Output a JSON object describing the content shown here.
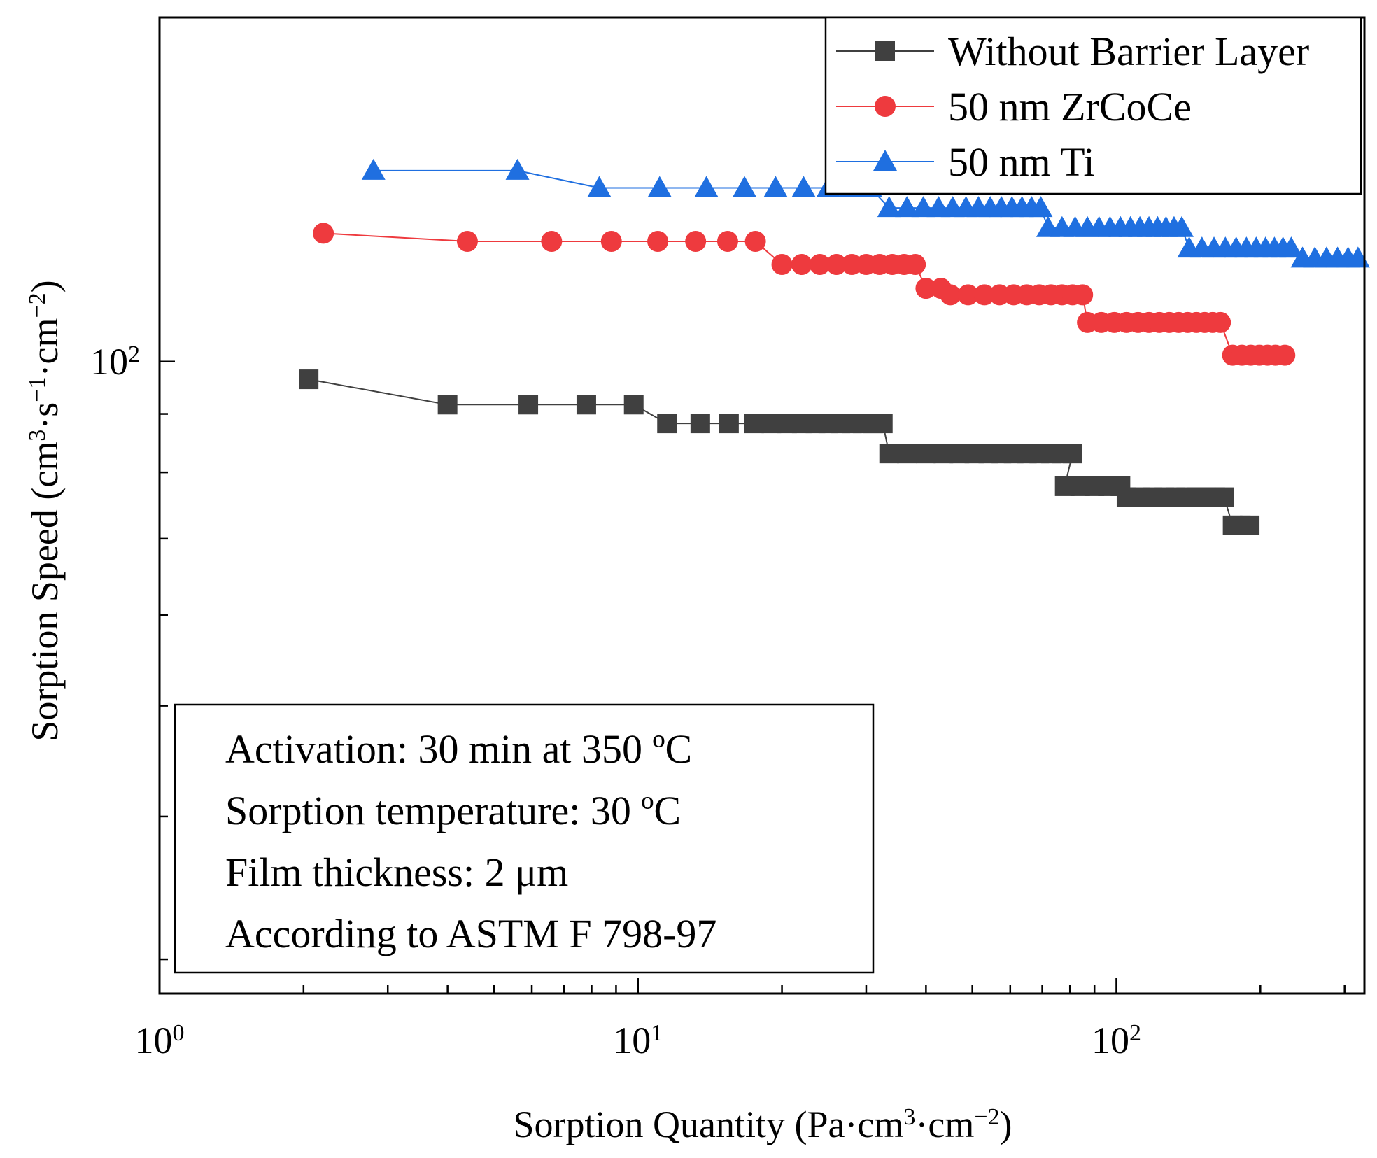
{
  "chart_data": {
    "type": "scatter",
    "title": "",
    "xlabel_parts": [
      "Sorption Quantity (Pa·cm",
      "3",
      "·cm",
      "−2",
      ")"
    ],
    "ylabel_parts": [
      "Sorption Speed (cm",
      "3",
      "·s",
      "−1",
      "·cm",
      "−2",
      ")"
    ],
    "x_scale": "log",
    "y_scale": "log",
    "xlim": [
      1,
      330
    ],
    "ylim": [
      28,
      200
    ],
    "x_ticks": [
      {
        "value": 1,
        "base": "10",
        "exp": "0"
      },
      {
        "value": 10,
        "base": "10",
        "exp": "1"
      },
      {
        "value": 100,
        "base": "10",
        "exp": "2"
      }
    ],
    "y_ticks": [
      {
        "value": 100,
        "base": "10",
        "exp": "2"
      }
    ],
    "series": [
      {
        "name": "Without Barrier Layer",
        "color": "#404040",
        "marker": "square",
        "points": [
          [
            2.05,
            96.5
          ],
          [
            4.0,
            91.7
          ],
          [
            5.9,
            91.7
          ],
          [
            7.8,
            91.7
          ],
          [
            9.8,
            91.7
          ],
          [
            11.5,
            88.3
          ],
          [
            13.5,
            88.3
          ],
          [
            15.5,
            88.3
          ],
          [
            17.5,
            88.3
          ],
          [
            19.0,
            88.3
          ],
          [
            20.5,
            88.3
          ],
          [
            22.0,
            88.3
          ],
          [
            23.5,
            88.3
          ],
          [
            25.0,
            88.3
          ],
          [
            26.5,
            88.3
          ],
          [
            28.0,
            88.3
          ],
          [
            29.5,
            88.3
          ],
          [
            31.0,
            88.3
          ],
          [
            32.5,
            88.3
          ],
          [
            33.5,
            83.1
          ],
          [
            36.5,
            83.1
          ],
          [
            40.0,
            83.1
          ],
          [
            43.5,
            83.1
          ],
          [
            47.0,
            83.1
          ],
          [
            50.5,
            83.1
          ],
          [
            54.0,
            83.1
          ],
          [
            57.5,
            83.1
          ],
          [
            61.0,
            83.1
          ],
          [
            65.0,
            83.1
          ],
          [
            69.0,
            83.1
          ],
          [
            73.0,
            83.1
          ],
          [
            77.0,
            83.1
          ],
          [
            81.0,
            83.1
          ],
          [
            78.0,
            77.8
          ],
          [
            84.0,
            77.8
          ],
          [
            90.0,
            77.8
          ],
          [
            96.0,
            77.8
          ],
          [
            102.0,
            77.8
          ],
          [
            105.0,
            76.1
          ],
          [
            112.0,
            76.1
          ],
          [
            119.0,
            76.1
          ],
          [
            126.0,
            76.1
          ],
          [
            133.0,
            76.1
          ],
          [
            140.0,
            76.1
          ],
          [
            147.0,
            76.1
          ],
          [
            154.0,
            76.1
          ],
          [
            161.0,
            76.1
          ],
          [
            168.0,
            76.1
          ],
          [
            175.0,
            71.9
          ],
          [
            182.0,
            71.9
          ],
          [
            190.0,
            71.9
          ]
        ]
      },
      {
        "name": "50 nm ZrCoCe",
        "color": "#ee3a3e",
        "marker": "circle",
        "points": [
          [
            2.2,
            129.5
          ],
          [
            4.4,
            127.4
          ],
          [
            6.6,
            127.4
          ],
          [
            8.8,
            127.4
          ],
          [
            11.0,
            127.4
          ],
          [
            13.2,
            127.4
          ],
          [
            15.4,
            127.4
          ],
          [
            17.6,
            127.4
          ],
          [
            20.0,
            121.6
          ],
          [
            22.0,
            121.6
          ],
          [
            24.0,
            121.6
          ],
          [
            26.0,
            121.6
          ],
          [
            28.0,
            121.6
          ],
          [
            30.0,
            121.6
          ],
          [
            32.0,
            121.6
          ],
          [
            34.0,
            121.6
          ],
          [
            36.0,
            121.6
          ],
          [
            38.0,
            121.6
          ],
          [
            40.0,
            115.9
          ],
          [
            43.0,
            115.9
          ],
          [
            45.0,
            114.4
          ],
          [
            49.0,
            114.4
          ],
          [
            53.0,
            114.4
          ],
          [
            57.0,
            114.4
          ],
          [
            61.0,
            114.4
          ],
          [
            65.0,
            114.4
          ],
          [
            69.0,
            114.4
          ],
          [
            73.0,
            114.4
          ],
          [
            77.0,
            114.4
          ],
          [
            81.0,
            114.4
          ],
          [
            85.0,
            114.4
          ],
          [
            87.0,
            108.2
          ],
          [
            93.0,
            108.2
          ],
          [
            99.0,
            108.2
          ],
          [
            105.0,
            108.2
          ],
          [
            111.0,
            108.2
          ],
          [
            117.0,
            108.2
          ],
          [
            123.0,
            108.2
          ],
          [
            129.0,
            108.2
          ],
          [
            135.0,
            108.2
          ],
          [
            141.0,
            108.2
          ],
          [
            147.0,
            108.2
          ],
          [
            153.0,
            108.2
          ],
          [
            159.0,
            108.2
          ],
          [
            165.0,
            108.2
          ],
          [
            175.0,
            101.3
          ],
          [
            183.0,
            101.3
          ],
          [
            191.0,
            101.3
          ],
          [
            199.0,
            101.3
          ],
          [
            207.0,
            101.3
          ],
          [
            215.0,
            101.3
          ],
          [
            225.0,
            101.3
          ]
        ]
      },
      {
        "name": "50 nm Ti",
        "color": "#1f6fe0",
        "marker": "triangle",
        "points": [
          [
            2.8,
            146.9
          ],
          [
            5.6,
            146.9
          ],
          [
            8.3,
            141.9
          ],
          [
            11.1,
            141.9
          ],
          [
            13.9,
            141.9
          ],
          [
            16.7,
            141.9
          ],
          [
            19.4,
            141.9
          ],
          [
            22.2,
            141.9
          ],
          [
            25.0,
            141.9
          ],
          [
            27.8,
            141.9
          ],
          [
            30.6,
            141.9
          ],
          [
            33.5,
            136.3
          ],
          [
            36.5,
            136.3
          ],
          [
            39.5,
            136.3
          ],
          [
            42.5,
            136.3
          ],
          [
            45.5,
            136.3
          ],
          [
            48.5,
            136.3
          ],
          [
            51.5,
            136.3
          ],
          [
            54.5,
            136.3
          ],
          [
            57.5,
            136.3
          ],
          [
            60.5,
            136.3
          ],
          [
            63.5,
            136.3
          ],
          [
            66.5,
            136.3
          ],
          [
            69.5,
            136.3
          ],
          [
            72.0,
            130.9
          ],
          [
            77.0,
            130.9
          ],
          [
            82.0,
            130.9
          ],
          [
            87.0,
            130.9
          ],
          [
            92.0,
            130.9
          ],
          [
            97.0,
            130.9
          ],
          [
            102.0,
            130.9
          ],
          [
            107.0,
            130.9
          ],
          [
            112.0,
            130.9
          ],
          [
            117.0,
            130.9
          ],
          [
            122.0,
            130.9
          ],
          [
            127.0,
            130.9
          ],
          [
            132.0,
            130.9
          ],
          [
            137.0,
            130.9
          ],
          [
            142.0,
            125.6
          ],
          [
            151.0,
            125.6
          ],
          [
            160.0,
            125.6
          ],
          [
            169.0,
            125.6
          ],
          [
            178.0,
            125.6
          ],
          [
            187.0,
            125.6
          ],
          [
            196.0,
            125.6
          ],
          [
            205.0,
            125.6
          ],
          [
            214.0,
            125.6
          ],
          [
            223.0,
            125.6
          ],
          [
            232.0,
            125.6
          ],
          [
            245.0,
            123.1
          ],
          [
            260.0,
            123.1
          ],
          [
            275.0,
            123.1
          ],
          [
            290.0,
            123.1
          ],
          [
            305.0,
            123.1
          ],
          [
            320.0,
            123.1
          ]
        ]
      }
    ],
    "legend": {
      "position": "top-right",
      "entries": [
        "Without Barrier Layer",
        "50 nm ZrCoCe",
        "50 nm Ti"
      ]
    },
    "annotation": {
      "position": "bottom-left",
      "lines": [
        "Activation: 30 min at 350 ºC",
        "Sorption temperature: 30 ºC",
        "Film thickness: 2 μm",
        "According to ASTM F 798-97"
      ]
    },
    "grid": false
  }
}
